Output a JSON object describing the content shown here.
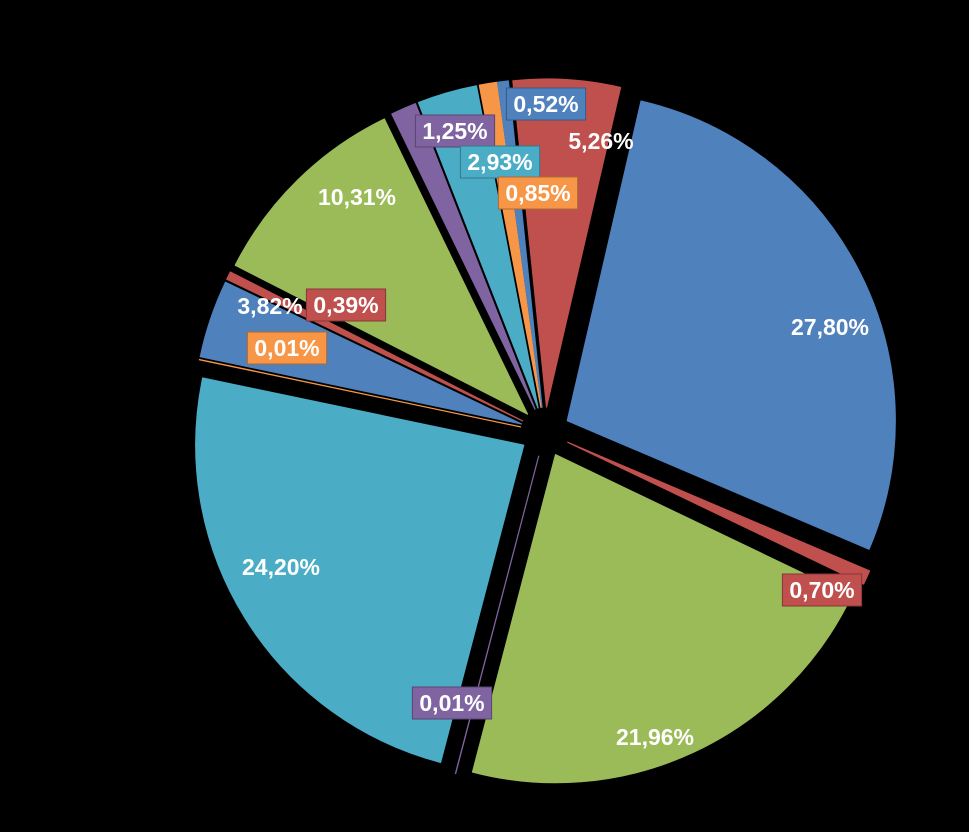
{
  "chart_data": {
    "type": "pie",
    "title": "",
    "legend_position": "none",
    "background_color": "#000000",
    "start_angle_deg": 13,
    "exploded": true,
    "label_unit": "%",
    "decimal_separator": ",",
    "palette": [
      "#4F81BD",
      "#C0504D",
      "#9BBB59",
      "#8064A2",
      "#4BACC6",
      "#F79646"
    ],
    "slices": [
      {
        "label": "27,80%",
        "value": 27.8,
        "color": "#4F81BD",
        "label_style": "inside"
      },
      {
        "label": "0,70%",
        "value": 0.7,
        "color": "#C0504D",
        "label_style": "box"
      },
      {
        "label": "21,96%",
        "value": 21.96,
        "color": "#9BBB59",
        "label_style": "inside"
      },
      {
        "label": "0,01%",
        "value": 0.01,
        "color": "#8064A2",
        "label_style": "box"
      },
      {
        "label": "24,20%",
        "value": 24.2,
        "color": "#4BACC6",
        "label_style": "inside"
      },
      {
        "label": "0,01%",
        "value": 0.01,
        "color": "#F79646",
        "label_style": "box"
      },
      {
        "label": "3,82%",
        "value": 3.82,
        "color": "#4F81BD",
        "label_style": "inside"
      },
      {
        "label": "0,39%",
        "value": 0.39,
        "color": "#C0504D",
        "label_style": "box"
      },
      {
        "label": "10,31%",
        "value": 10.31,
        "color": "#9BBB59",
        "label_style": "inside"
      },
      {
        "label": "1,25%",
        "value": 1.25,
        "color": "#8064A2",
        "label_style": "box"
      },
      {
        "label": "2,93%",
        "value": 2.93,
        "color": "#4BACC6",
        "label_style": "box"
      },
      {
        "label": "0,85%",
        "value": 0.85,
        "color": "#F79646",
        "label_style": "box"
      },
      {
        "label": "0,52%",
        "value": 0.52,
        "color": "#4F81BD",
        "label_style": "box"
      },
      {
        "label": "5,26%",
        "value": 5.26,
        "color": "#C0504D",
        "label_style": "inside"
      }
    ]
  }
}
